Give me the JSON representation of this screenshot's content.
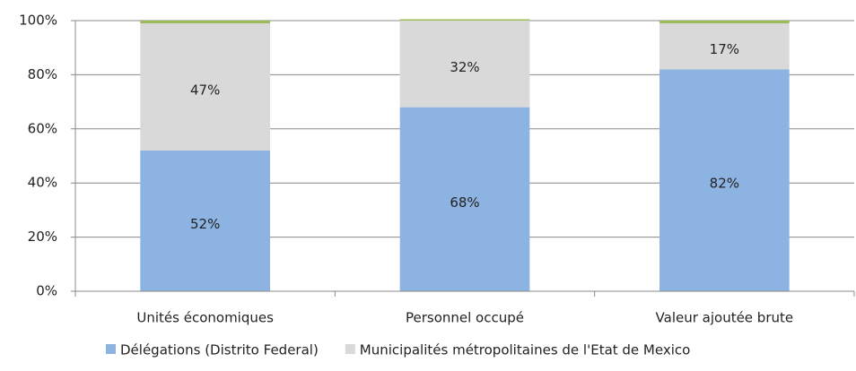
{
  "chart_data": {
    "type": "stacked_bar",
    "categories": [
      "Unités économiques",
      "Personnel occupé",
      "Valeur ajoutée brute"
    ],
    "series": [
      {
        "name": "Délégations (Distrito Federal)",
        "color": "#8db3e2",
        "values": [
          52,
          68,
          82
        ],
        "value_labels": [
          "52%",
          "68%",
          "82%"
        ]
      },
      {
        "name": "Municipalités métropolitaines de l'Etat de Mexico",
        "color": "#d9d9d9",
        "values": [
          47,
          32,
          17
        ],
        "value_labels": [
          "47%",
          "32%",
          "17%"
        ]
      },
      {
        "color": "#9bbb59",
        "values": [
          1,
          0.5,
          1
        ]
      }
    ],
    "ylim": [
      0,
      100
    ],
    "yticks": [
      {
        "value": 0,
        "label": "0%"
      },
      {
        "value": 20,
        "label": "20%"
      },
      {
        "value": 40,
        "label": "40%"
      },
      {
        "value": 60,
        "label": "60%"
      },
      {
        "value": 80,
        "label": "80%"
      },
      {
        "value": 100,
        "label": "100%"
      }
    ],
    "grid": true,
    "legend": "bottom"
  }
}
